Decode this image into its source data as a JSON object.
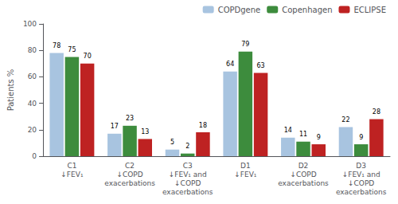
{
  "chart_data": {
    "type": "bar",
    "categories": [
      "C1\n↓FEV₁",
      "C2\n↓COPD\nexacerbations",
      "C3\n↓FEV₁ and\n↓COPD\nexacerbations",
      "D1\n↓FEV₁",
      "D2\n↓COPD\nexacerbations",
      "D3\n↓FEV₁ and\n↓COPD\nexacerbations"
    ],
    "series": [
      {
        "name": "COPDgene",
        "color": "#a8c4e0",
        "values": [
          78,
          17,
          5,
          64,
          14,
          22
        ]
      },
      {
        "name": "Copenhagen",
        "color": "#3d8c3d",
        "values": [
          75,
          23,
          2,
          79,
          11,
          9
        ]
      },
      {
        "name": "ECLIPSE",
        "color": "#be2222",
        "values": [
          70,
          13,
          18,
          63,
          9,
          28
        ]
      }
    ],
    "ylabel": "Patients %",
    "ylim": [
      0,
      100
    ],
    "yticks": [
      0,
      20,
      40,
      60,
      80,
      100
    ],
    "data_labels": true,
    "legend": "upper right",
    "grid": false
  }
}
